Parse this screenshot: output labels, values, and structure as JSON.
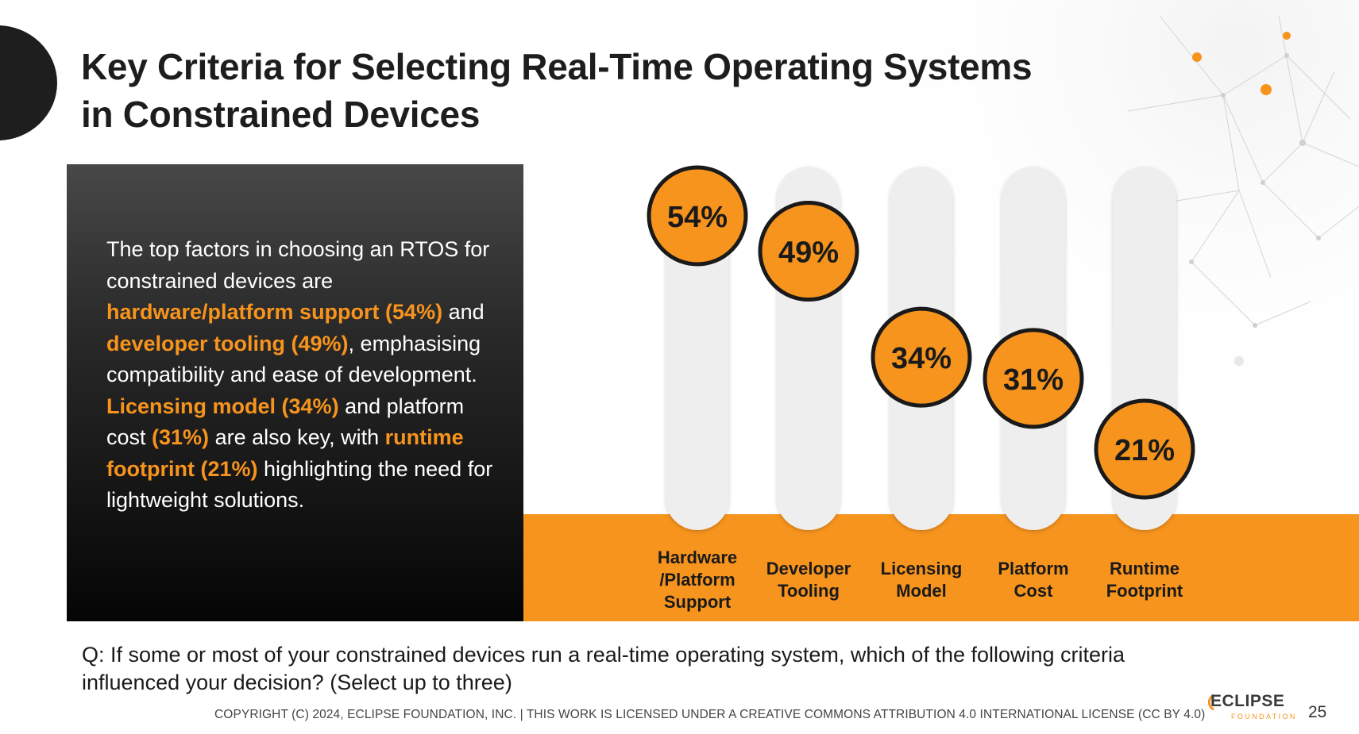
{
  "slide": {
    "title_lines": [
      "Key Criteria for Selecting Real-Time Operating Systems",
      "in Constrained Devices"
    ],
    "question_lines": [
      "Q: If some or most of your constrained devices run a real-time operating system, which of the following criteria",
      "influenced your decision? (Select up to three)"
    ],
    "copyright": "COPYRIGHT (C) 2024, ECLIPSE FOUNDATION, INC. | THIS WORK IS LICENSED UNDER A CREATIVE COMMONS ATTRIBUTION 4.0 INTERNATIONAL LICENSE (CC BY 4.0)",
    "logo_word": "ECLIPSE",
    "logo_sub": "FOUNDATION",
    "page_number": "25"
  },
  "summary": {
    "s1": "The top factors in choosing an RTOS for constrained devices are ",
    "h1": "hardware/platform support (54%)",
    "s2": " and ",
    "h2": "developer tooling (49%)",
    "s3": ", emphasising compatibility and ease of development. ",
    "h3": "Licensing model (34%)",
    "s4": " and platform cost ",
    "h4": "(31%)",
    "s5": " are also key, with ",
    "h5": "runtime footprint (21%)",
    "s6": " highlighting the need for lightweight solutions."
  },
  "colors": {
    "accent": "#f7941d",
    "dark": "#1e1e1e",
    "track": "#eeeeee",
    "circle_border": "#1a1a1a"
  },
  "chart_data": {
    "type": "bar",
    "categories": [
      [
        "Hardware",
        "/Platform",
        "Support"
      ],
      [
        "Developer",
        "Tooling"
      ],
      [
        "Licensing",
        "Model"
      ],
      [
        "Platform",
        "Cost"
      ],
      [
        "Runtime",
        "Footprint"
      ]
    ],
    "values": [
      54,
      49,
      34,
      31,
      21
    ],
    "value_labels": [
      "54%",
      "49%",
      "34%",
      "31%",
      "21%"
    ],
    "unit": "%",
    "ylim": [
      0,
      54
    ],
    "grid": false,
    "legend": "none"
  }
}
